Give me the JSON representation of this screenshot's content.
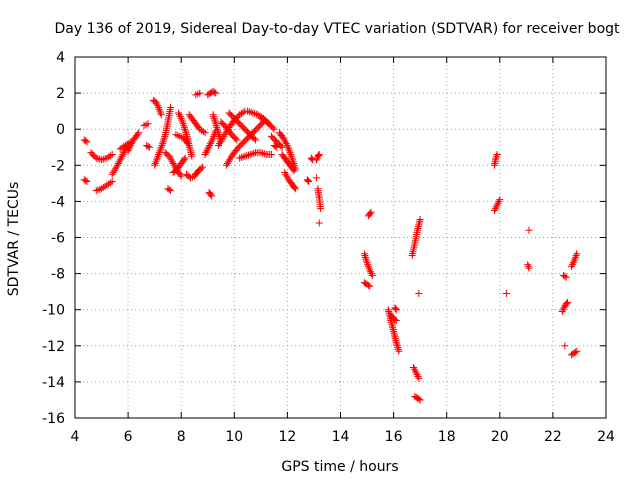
{
  "chart_data": {
    "type": "scatter",
    "title": "Day 136 of 2019, Sidereal Day-to-day VTEC variation (SDTVAR) for receiver bogt",
    "xlabel": "GPS time / hours",
    "ylabel": "SDTVAR / TECUs",
    "xlim": [
      4,
      24
    ],
    "ylim": [
      -16,
      4
    ],
    "xticks": [
      4,
      6,
      8,
      10,
      12,
      14,
      16,
      18,
      20,
      22,
      24
    ],
    "yticks": [
      -16,
      -14,
      -12,
      -10,
      -8,
      -6,
      -4,
      -2,
      0,
      2,
      4
    ],
    "grid": true,
    "marker": "plus",
    "color": "#ff0000",
    "segments": [
      {
        "x": [
          4.35,
          4.45
        ],
        "y": [
          -0.6,
          -0.7
        ]
      },
      {
        "x": [
          4.35,
          4.45
        ],
        "y": [
          -2.8,
          -2.9
        ]
      },
      {
        "x": [
          4.6,
          4.8,
          5.0,
          5.2,
          5.4
        ],
        "y": [
          -1.3,
          -1.6,
          -1.7,
          -1.6,
          -1.4
        ]
      },
      {
        "x": [
          4.8,
          5.0,
          5.2,
          5.4
        ],
        "y": [
          -3.4,
          -3.3,
          -3.1,
          -2.9
        ]
      },
      {
        "x": [
          5.4,
          5.6,
          5.8,
          6.0
        ],
        "y": [
          -2.5,
          -2.0,
          -1.4,
          -0.9
        ]
      },
      {
        "x": [
          5.7,
          5.9,
          6.1
        ],
        "y": [
          -1.1,
          -0.9,
          -0.7
        ]
      },
      {
        "x": [
          6.0,
          6.2,
          6.4
        ],
        "y": [
          -1.2,
          -0.6,
          -0.2
        ]
      },
      {
        "x": [
          6.7,
          6.8
        ],
        "y": [
          -0.9,
          -1.0
        ]
      },
      {
        "x": [
          6.6,
          6.75
        ],
        "y": [
          0.2,
          0.3
        ]
      },
      {
        "x": [
          6.95,
          7.05,
          7.15,
          7.25
        ],
        "y": [
          1.6,
          1.5,
          1.2,
          0.8
        ]
      },
      {
        "x": [
          7.0,
          7.1,
          7.2,
          7.3,
          7.4,
          7.5,
          7.6
        ],
        "y": [
          -2.0,
          -1.6,
          -1.2,
          -0.8,
          -0.3,
          0.4,
          1.2
        ]
      },
      {
        "x": [
          7.4,
          7.55,
          7.7,
          7.85,
          8.0
        ],
        "y": [
          -1.3,
          -1.5,
          -1.9,
          -2.3,
          -2.6
        ]
      },
      {
        "x": [
          7.5,
          7.6
        ],
        "y": [
          -3.3,
          -3.4
        ]
      },
      {
        "x": [
          7.7,
          7.85,
          8.0,
          8.15
        ],
        "y": [
          -2.4,
          -2.2,
          -1.9,
          -1.6
        ]
      },
      {
        "x": [
          7.8,
          7.95,
          8.1,
          8.25
        ],
        "y": [
          -0.3,
          -0.4,
          -0.5,
          -0.8
        ]
      },
      {
        "x": [
          7.9,
          8.0,
          8.1,
          8.2,
          8.3,
          8.4
        ],
        "y": [
          0.9,
          0.6,
          0.2,
          -0.3,
          -0.9,
          -1.5
        ]
      },
      {
        "x": [
          8.2,
          8.35,
          8.5,
          8.65,
          8.8
        ],
        "y": [
          -2.5,
          -2.7,
          -2.6,
          -2.3,
          -2.1
        ]
      },
      {
        "x": [
          8.3,
          8.5,
          8.7,
          8.9
        ],
        "y": [
          0.8,
          0.4,
          0.0,
          -0.2
        ]
      },
      {
        "x": [
          8.55,
          8.7
        ],
        "y": [
          1.9,
          2.0
        ]
      },
      {
        "x": [
          9.0,
          9.1,
          9.2,
          9.3
        ],
        "y": [
          1.9,
          2.0,
          2.1,
          2.0
        ]
      },
      {
        "x": [
          8.9,
          9.0,
          9.1,
          9.2,
          9.3
        ],
        "y": [
          -1.4,
          -1.1,
          -0.8,
          -0.5,
          -0.1
        ]
      },
      {
        "x": [
          9.05,
          9.15
        ],
        "y": [
          -3.5,
          -3.7
        ]
      },
      {
        "x": [
          9.2,
          9.3,
          9.4,
          9.5
        ],
        "y": [
          0.8,
          0.3,
          -0.2,
          -0.7
        ]
      },
      {
        "x": [
          9.4,
          9.6,
          9.8,
          10.0,
          10.2,
          10.4
        ],
        "y": [
          -0.9,
          -0.4,
          0.1,
          0.5,
          0.8,
          1.0
        ]
      },
      {
        "x": [
          9.5,
          9.7,
          9.9,
          10.1
        ],
        "y": [
          0.4,
          0.1,
          -0.3,
          -0.6
        ]
      },
      {
        "x": [
          9.7,
          9.9,
          10.1,
          10.3,
          10.5,
          10.7,
          10.9,
          11.1
        ],
        "y": [
          -2.0,
          -1.5,
          -1.1,
          -0.8,
          -0.5,
          -0.2,
          0.1,
          0.4
        ]
      },
      {
        "x": [
          9.8,
          10.0,
          10.2,
          10.4,
          10.6,
          10.8
        ],
        "y": [
          0.9,
          0.6,
          0.3,
          0.0,
          -0.3,
          -0.6
        ]
      },
      {
        "x": [
          10.2,
          10.4,
          10.6,
          10.8,
          11.0,
          11.2,
          11.4
        ],
        "y": [
          -1.6,
          -1.5,
          -1.4,
          -1.3,
          -1.3,
          -1.4,
          -1.4
        ]
      },
      {
        "x": [
          10.5,
          10.7,
          10.9,
          11.1,
          11.3,
          11.5
        ],
        "y": [
          1.0,
          0.9,
          0.8,
          0.6,
          0.3,
          0.0
        ]
      },
      {
        "x": [
          11.0,
          11.15,
          11.3
        ],
        "y": [
          0.6,
          0.5,
          0.3
        ]
      },
      {
        "x": [
          11.5,
          11.6
        ],
        "y": [
          -0.9,
          -1.0
        ]
      },
      {
        "x": [
          11.4,
          11.6,
          11.8
        ],
        "y": [
          -0.4,
          -0.7,
          -1.0
        ]
      },
      {
        "x": [
          11.7,
          11.85,
          12.0,
          12.15,
          12.3
        ],
        "y": [
          -0.2,
          -0.5,
          -0.9,
          -1.5,
          -2.2
        ]
      },
      {
        "x": [
          11.8,
          11.95,
          12.1,
          12.25
        ],
        "y": [
          -1.4,
          -1.7,
          -2.0,
          -2.3
        ]
      },
      {
        "x": [
          11.9,
          12.05,
          12.2,
          12.3
        ],
        "y": [
          -2.4,
          -2.8,
          -3.1,
          -3.3
        ]
      },
      {
        "x": [
          12.75,
          12.8
        ],
        "y": [
          -2.8,
          -2.9
        ]
      },
      {
        "x": [
          13.1,
          13.15,
          13.2
        ],
        "y": [
          -1.7,
          -1.5,
          -1.4
        ]
      },
      {
        "x": [
          13.15,
          13.2,
          13.25
        ],
        "y": [
          -3.3,
          -3.8,
          -4.4
        ]
      },
      {
        "x": [
          13.2
        ],
        "y": [
          -5.2
        ]
      },
      {
        "x": [
          13.1
        ],
        "y": [
          -2.7
        ]
      },
      {
        "x": [
          12.9,
          12.95
        ],
        "y": [
          -1.6,
          -1.7
        ]
      },
      {
        "x": [
          14.9,
          15.0,
          15.1,
          15.2
        ],
        "y": [
          -6.9,
          -7.4,
          -7.8,
          -8.1
        ]
      },
      {
        "x": [
          14.9,
          15.0,
          15.1
        ],
        "y": [
          -8.5,
          -8.6,
          -8.7
        ]
      },
      {
        "x": [
          15.05,
          15.15
        ],
        "y": [
          -4.8,
          -4.6
        ]
      },
      {
        "x": [
          15.8,
          15.9,
          16.0,
          16.1,
          16.2
        ],
        "y": [
          -10.0,
          -10.6,
          -11.2,
          -11.8,
          -12.3
        ]
      },
      {
        "x": [
          15.9,
          16.0,
          16.1
        ],
        "y": [
          -10.3,
          -10.5,
          -10.6
        ]
      },
      {
        "x": [
          16.05,
          16.1
        ],
        "y": [
          -9.9,
          -10.0
        ]
      },
      {
        "x": [
          16.7,
          16.8,
          16.9,
          17.0
        ],
        "y": [
          -7.0,
          -6.3,
          -5.6,
          -5.0
        ]
      },
      {
        "x": [
          16.75,
          16.85,
          16.95
        ],
        "y": [
          -13.2,
          -13.5,
          -13.8
        ]
      },
      {
        "x": [
          16.8,
          16.9,
          17.0
        ],
        "y": [
          -14.8,
          -14.9,
          -15.0
        ]
      },
      {
        "x": [
          16.95
        ],
        "y": [
          -9.1
        ]
      },
      {
        "x": [
          19.8,
          19.85,
          19.9
        ],
        "y": [
          -2.0,
          -1.6,
          -1.4
        ]
      },
      {
        "x": [
          19.8,
          19.9,
          20.0
        ],
        "y": [
          -4.5,
          -4.2,
          -3.9
        ]
      },
      {
        "x": [
          20.25
        ],
        "y": [
          -9.1
        ]
      },
      {
        "x": [
          21.05,
          21.1
        ],
        "y": [
          -7.5,
          -7.7
        ]
      },
      {
        "x": [
          21.1
        ],
        "y": [
          -5.6
        ]
      },
      {
        "x": [
          22.4,
          22.5
        ],
        "y": [
          -8.1,
          -8.2
        ]
      },
      {
        "x": [
          22.35,
          22.45,
          22.55
        ],
        "y": [
          -10.1,
          -9.8,
          -9.6
        ]
      },
      {
        "x": [
          22.45
        ],
        "y": [
          -12.0
        ]
      },
      {
        "x": [
          22.7,
          22.8,
          22.9
        ],
        "y": [
          -7.6,
          -7.3,
          -6.9
        ]
      },
      {
        "x": [
          22.7,
          22.8,
          22.9
        ],
        "y": [
          -12.5,
          -12.4,
          -12.3
        ]
      }
    ]
  }
}
